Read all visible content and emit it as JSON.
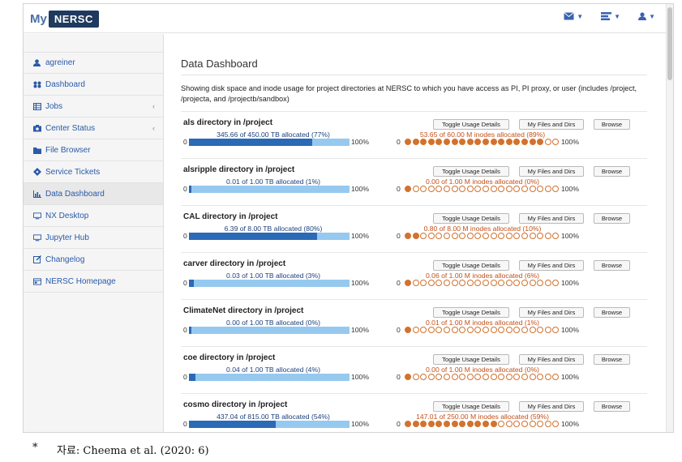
{
  "app": {
    "logo_prefix": "My",
    "logo_brand": "NERSC"
  },
  "topbar": {
    "icons": [
      "envelope-icon",
      "tasks-icon",
      "user-icon"
    ]
  },
  "sidebar": {
    "items": [
      {
        "label": "agreiner",
        "icon": "user-icon"
      },
      {
        "label": "Dashboard",
        "icon": "dashboard-icon"
      },
      {
        "label": "Jobs",
        "icon": "list-icon",
        "has_chevron": true
      },
      {
        "label": "Center Status",
        "icon": "status-icon",
        "has_chevron": true
      },
      {
        "label": "File Browser",
        "icon": "folder-icon"
      },
      {
        "label": "Service Tickets",
        "icon": "ticket-icon"
      },
      {
        "label": "Data Dashboard",
        "icon": "bar-chart-icon",
        "active": true
      },
      {
        "label": "NX Desktop",
        "icon": "monitor-icon"
      },
      {
        "label": "Jupyter Hub",
        "icon": "monitor-icon"
      },
      {
        "label": "Changelog",
        "icon": "edit-icon"
      },
      {
        "label": "NERSC Homepage",
        "icon": "home-icon"
      }
    ]
  },
  "main": {
    "title": "Data Dashboard",
    "description": "Showing disk space and inode usage for project directories at NERSC to which you have access as PI, PI proxy, or user (includes /project, /projecta, and /projectb/sandbox)",
    "buttons": {
      "toggle": "Toggle Usage Details",
      "files": "My Files and Dirs",
      "browse": "Browse"
    },
    "scale": {
      "zero": "0",
      "hundred": "100%"
    },
    "directories": [
      {
        "name": "als directory in /project",
        "tb_label": "345.66 of 450.00 TB allocated (77%)",
        "tb_fraction": 0.77,
        "inode_label": "53.65 of 60.00 M inodes allocated (89%)",
        "inode_fraction": 0.89
      },
      {
        "name": "alsripple directory in /project",
        "tb_label": "0.01 of 1.00 TB allocated (1%)",
        "tb_fraction": 0.01,
        "inode_label": "0.00 of 1.00 M inodes allocated (0%)",
        "inode_fraction": 0.0
      },
      {
        "name": "CAL directory in /project",
        "tb_label": "6.39 of 8.00 TB allocated (80%)",
        "tb_fraction": 0.8,
        "inode_label": "0.80 of 8.00 M inodes allocated (10%)",
        "inode_fraction": 0.1
      },
      {
        "name": "carver directory in /project",
        "tb_label": "0.03 of 1.00 TB allocated (3%)",
        "tb_fraction": 0.03,
        "inode_label": "0.06 of 1.00 M inodes allocated (6%)",
        "inode_fraction": 0.06
      },
      {
        "name": "ClimateNet directory in /project",
        "tb_label": "0.00 of 1.00 TB allocated (0%)",
        "tb_fraction": 0.0,
        "inode_label": "0.01 of 1.00 M inodes allocated (1%)",
        "inode_fraction": 0.01
      },
      {
        "name": "coe directory in /project",
        "tb_label": "0.04 of 1.00 TB allocated (4%)",
        "tb_fraction": 0.04,
        "inode_label": "0.00 of 1.00 M inodes allocated (0%)",
        "inode_fraction": 0.0
      },
      {
        "name": "cosmo directory in /project",
        "tb_label": "437.04 of 815.00 TB allocated (54%)",
        "tb_fraction": 0.54,
        "inode_label": "147.01 of 250.00 M inodes allocated (59%)",
        "inode_fraction": 0.59
      }
    ]
  },
  "colors": {
    "tb_fill": "#2a6ab6",
    "tb_track": "#96c9ef",
    "inode": "#d3722e",
    "link": "#2a5aa8"
  },
  "caption": {
    "mark": "*",
    "text": "자료: Cheema et al. (2020: 6)"
  }
}
